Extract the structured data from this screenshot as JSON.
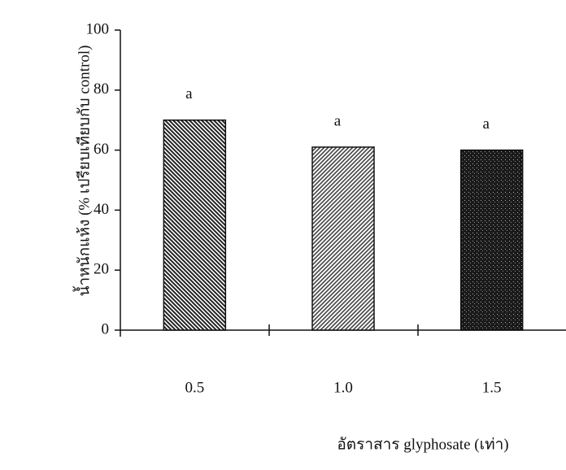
{
  "chart_data": {
    "type": "bar",
    "categories": [
      "0.5",
      "1.0",
      "1.5"
    ],
    "values": [
      70,
      61,
      60
    ],
    "annotations": [
      "a",
      "a",
      "a"
    ],
    "colors": [
      "#222222",
      "#444444",
      "#1a1a1a"
    ],
    "xlabel": "อัตราสาร glyphosate (เท่า)",
    "ylabel": "น้ำหนักแห้ง (% เปรียบเทียบกับ control)",
    "ylim": [
      0,
      100
    ],
    "yticks": [
      0,
      20,
      40,
      60,
      80,
      100
    ],
    "grid": false
  }
}
